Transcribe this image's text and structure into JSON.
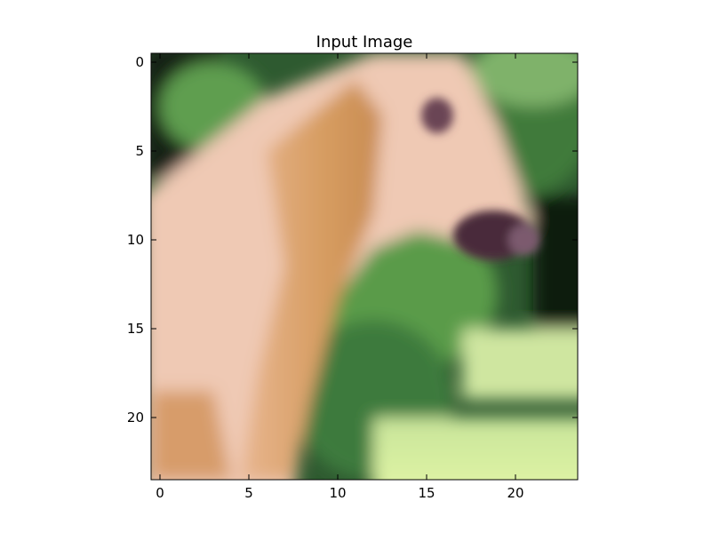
{
  "chart_data": {
    "type": "heatmap",
    "title": "Input Image",
    "xlabel": "",
    "ylabel": "",
    "xlim": [
      -0.5,
      23.5
    ],
    "ylim": [
      23.5,
      -0.5
    ],
    "xticks": [
      0,
      5,
      10,
      15,
      20
    ],
    "yticks": [
      0,
      5,
      10,
      15,
      20
    ],
    "grid": false,
    "image": {
      "shape": [
        24,
        24
      ],
      "interpolation": "smooth",
      "content_note_colors": {
        "dark_green_background": "#1e3a1f",
        "foliage_green": "#5c9a4c",
        "horse_cream": "#f0c8b2",
        "horse_tan": "#d9a066",
        "muzzle_dark": "#4a2b3a",
        "eye_dark": "#5a3a4a",
        "pale_ground": "#e0f2a0"
      }
    }
  }
}
